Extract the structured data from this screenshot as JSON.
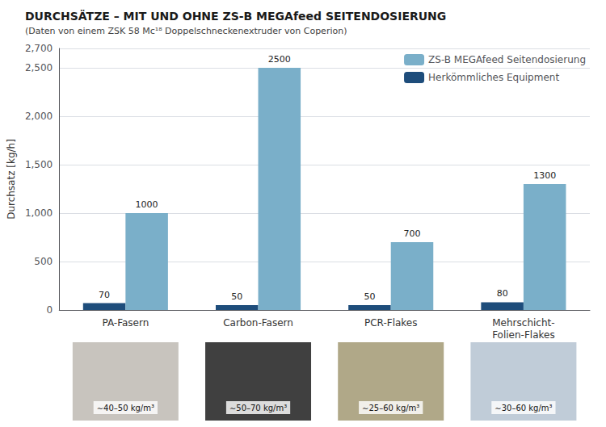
{
  "chart_data": {
    "type": "bar",
    "title": "DURCHSÄTZE – MIT UND OHNE ZS-B MEGAfeed SEITENDOSIERUNG",
    "subtitle": "(Daten von einem ZSK 58 Mc¹⁸ Doppelschneckenextruder von Coperion)",
    "ylabel": "Durchsatz [kg/h]",
    "categories": [
      "PA-Fasern",
      "Carbon-Fasern",
      "PCR-Flakes",
      "Mehrschicht-\nFolien-Flakes"
    ],
    "series": [
      {
        "name": "Herkömmliches Equipment",
        "color": "#1e4d7b",
        "values": [
          70,
          50,
          50,
          80
        ]
      },
      {
        "name": "ZS-B MEGAfeed Seitendosierung",
        "color": "#7aafc9",
        "values": [
          1000,
          2500,
          700,
          1300
        ]
      }
    ],
    "ylim": [
      0,
      2700
    ],
    "yticks": [
      0,
      500,
      1000,
      1500,
      2000,
      2500
    ],
    "grid": true,
    "legend": "upper right",
    "data_labels": true,
    "annotations": [
      {
        "text": "∼40–50 kg/m³",
        "color": "#c8c4be"
      },
      {
        "text": "∼50–70 kg/m³",
        "color": "#404040"
      },
      {
        "text": "∼25–60 kg/m³",
        "color": "#b0a888"
      },
      {
        "text": "∼30–60 kg/m³",
        "color": "#c0ccd8"
      }
    ]
  }
}
